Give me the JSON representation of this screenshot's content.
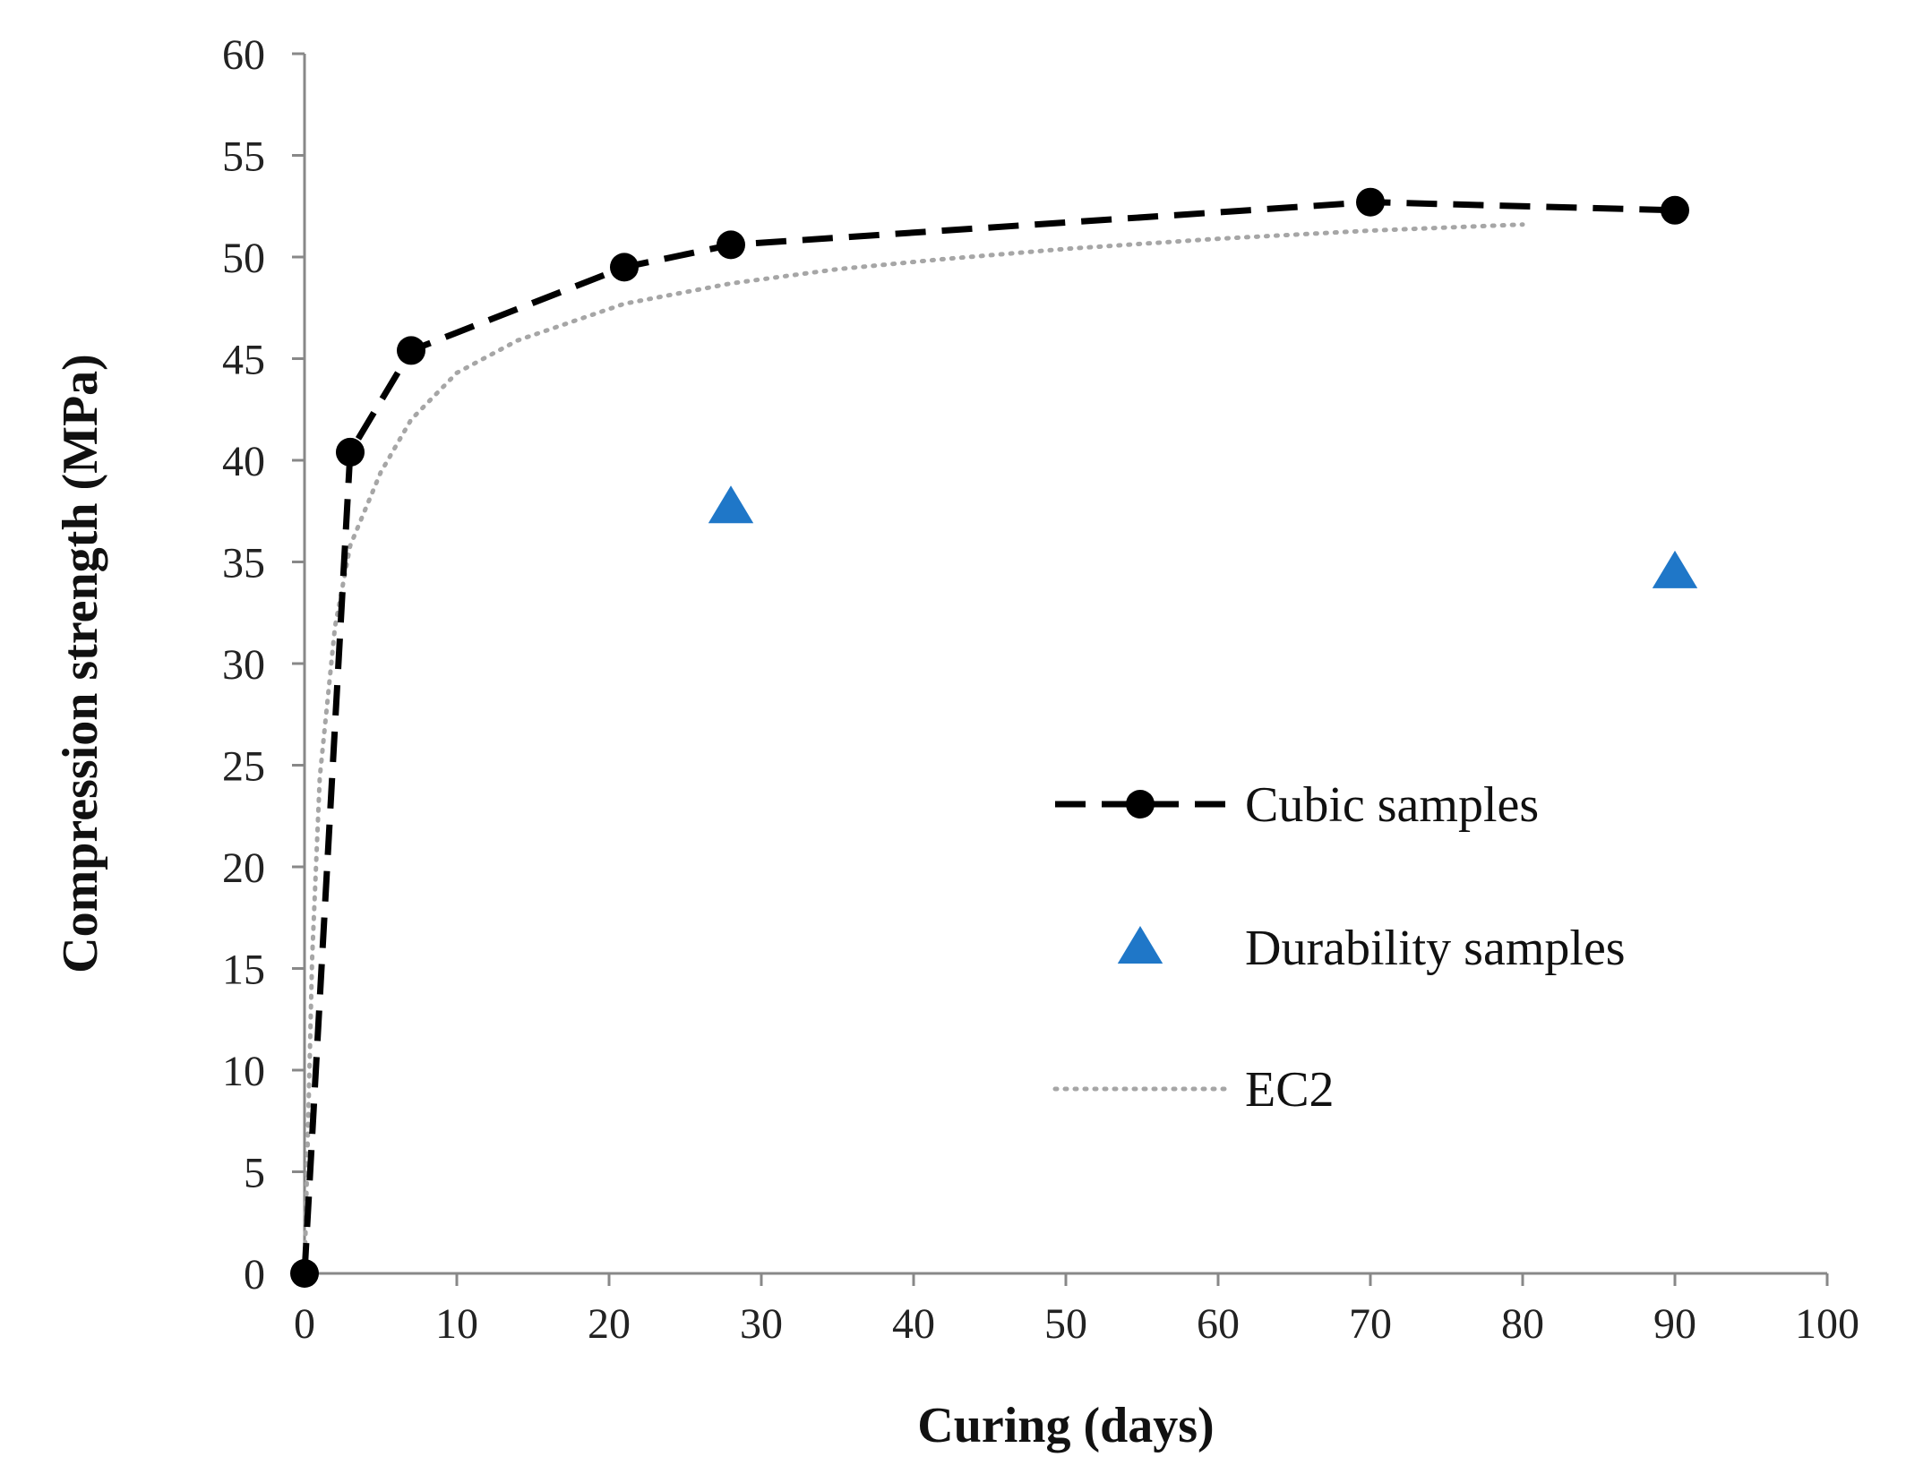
{
  "chart_data": {
    "type": "line",
    "title": "",
    "xlabel": "Curing (days)",
    "ylabel": "Compression strength (MPa)",
    "xlim": [
      0,
      100
    ],
    "ylim": [
      0,
      60
    ],
    "x_ticks": [
      "0",
      "10",
      "20",
      "30",
      "40",
      "50",
      "60",
      "70",
      "80",
      "90",
      "100"
    ],
    "y_ticks": [
      "0",
      "5",
      "10",
      "15",
      "20",
      "25",
      "30",
      "35",
      "40",
      "45",
      "50",
      "55",
      "60"
    ],
    "grid": false,
    "legend_position": "right",
    "series": [
      {
        "name": "Cubic samples",
        "style": "dashed-line-with-circle-markers",
        "color": "#000000",
        "x": [
          0,
          3,
          7,
          21,
          28,
          70,
          90
        ],
        "y": [
          0,
          40.4,
          45.4,
          49.5,
          50.6,
          52.7,
          52.3
        ]
      },
      {
        "name": "Durability samples",
        "style": "triangle-markers",
        "color": "#1f77c8",
        "x": [
          28,
          90
        ],
        "y": [
          37.7,
          34.5
        ]
      },
      {
        "name": "EC2",
        "style": "dotted-line",
        "color": "#a6a6a6",
        "x": [
          0,
          0.5,
          1,
          2,
          3,
          5,
          7,
          10,
          14,
          21,
          28,
          35,
          42,
          50,
          60,
          70,
          80
        ],
        "y": [
          0,
          15.5,
          24.4,
          31.8,
          35.8,
          39.4,
          42.0,
          44.3,
          45.9,
          47.7,
          48.7,
          49.4,
          49.9,
          50.4,
          50.9,
          51.3,
          51.6
        ]
      }
    ]
  }
}
